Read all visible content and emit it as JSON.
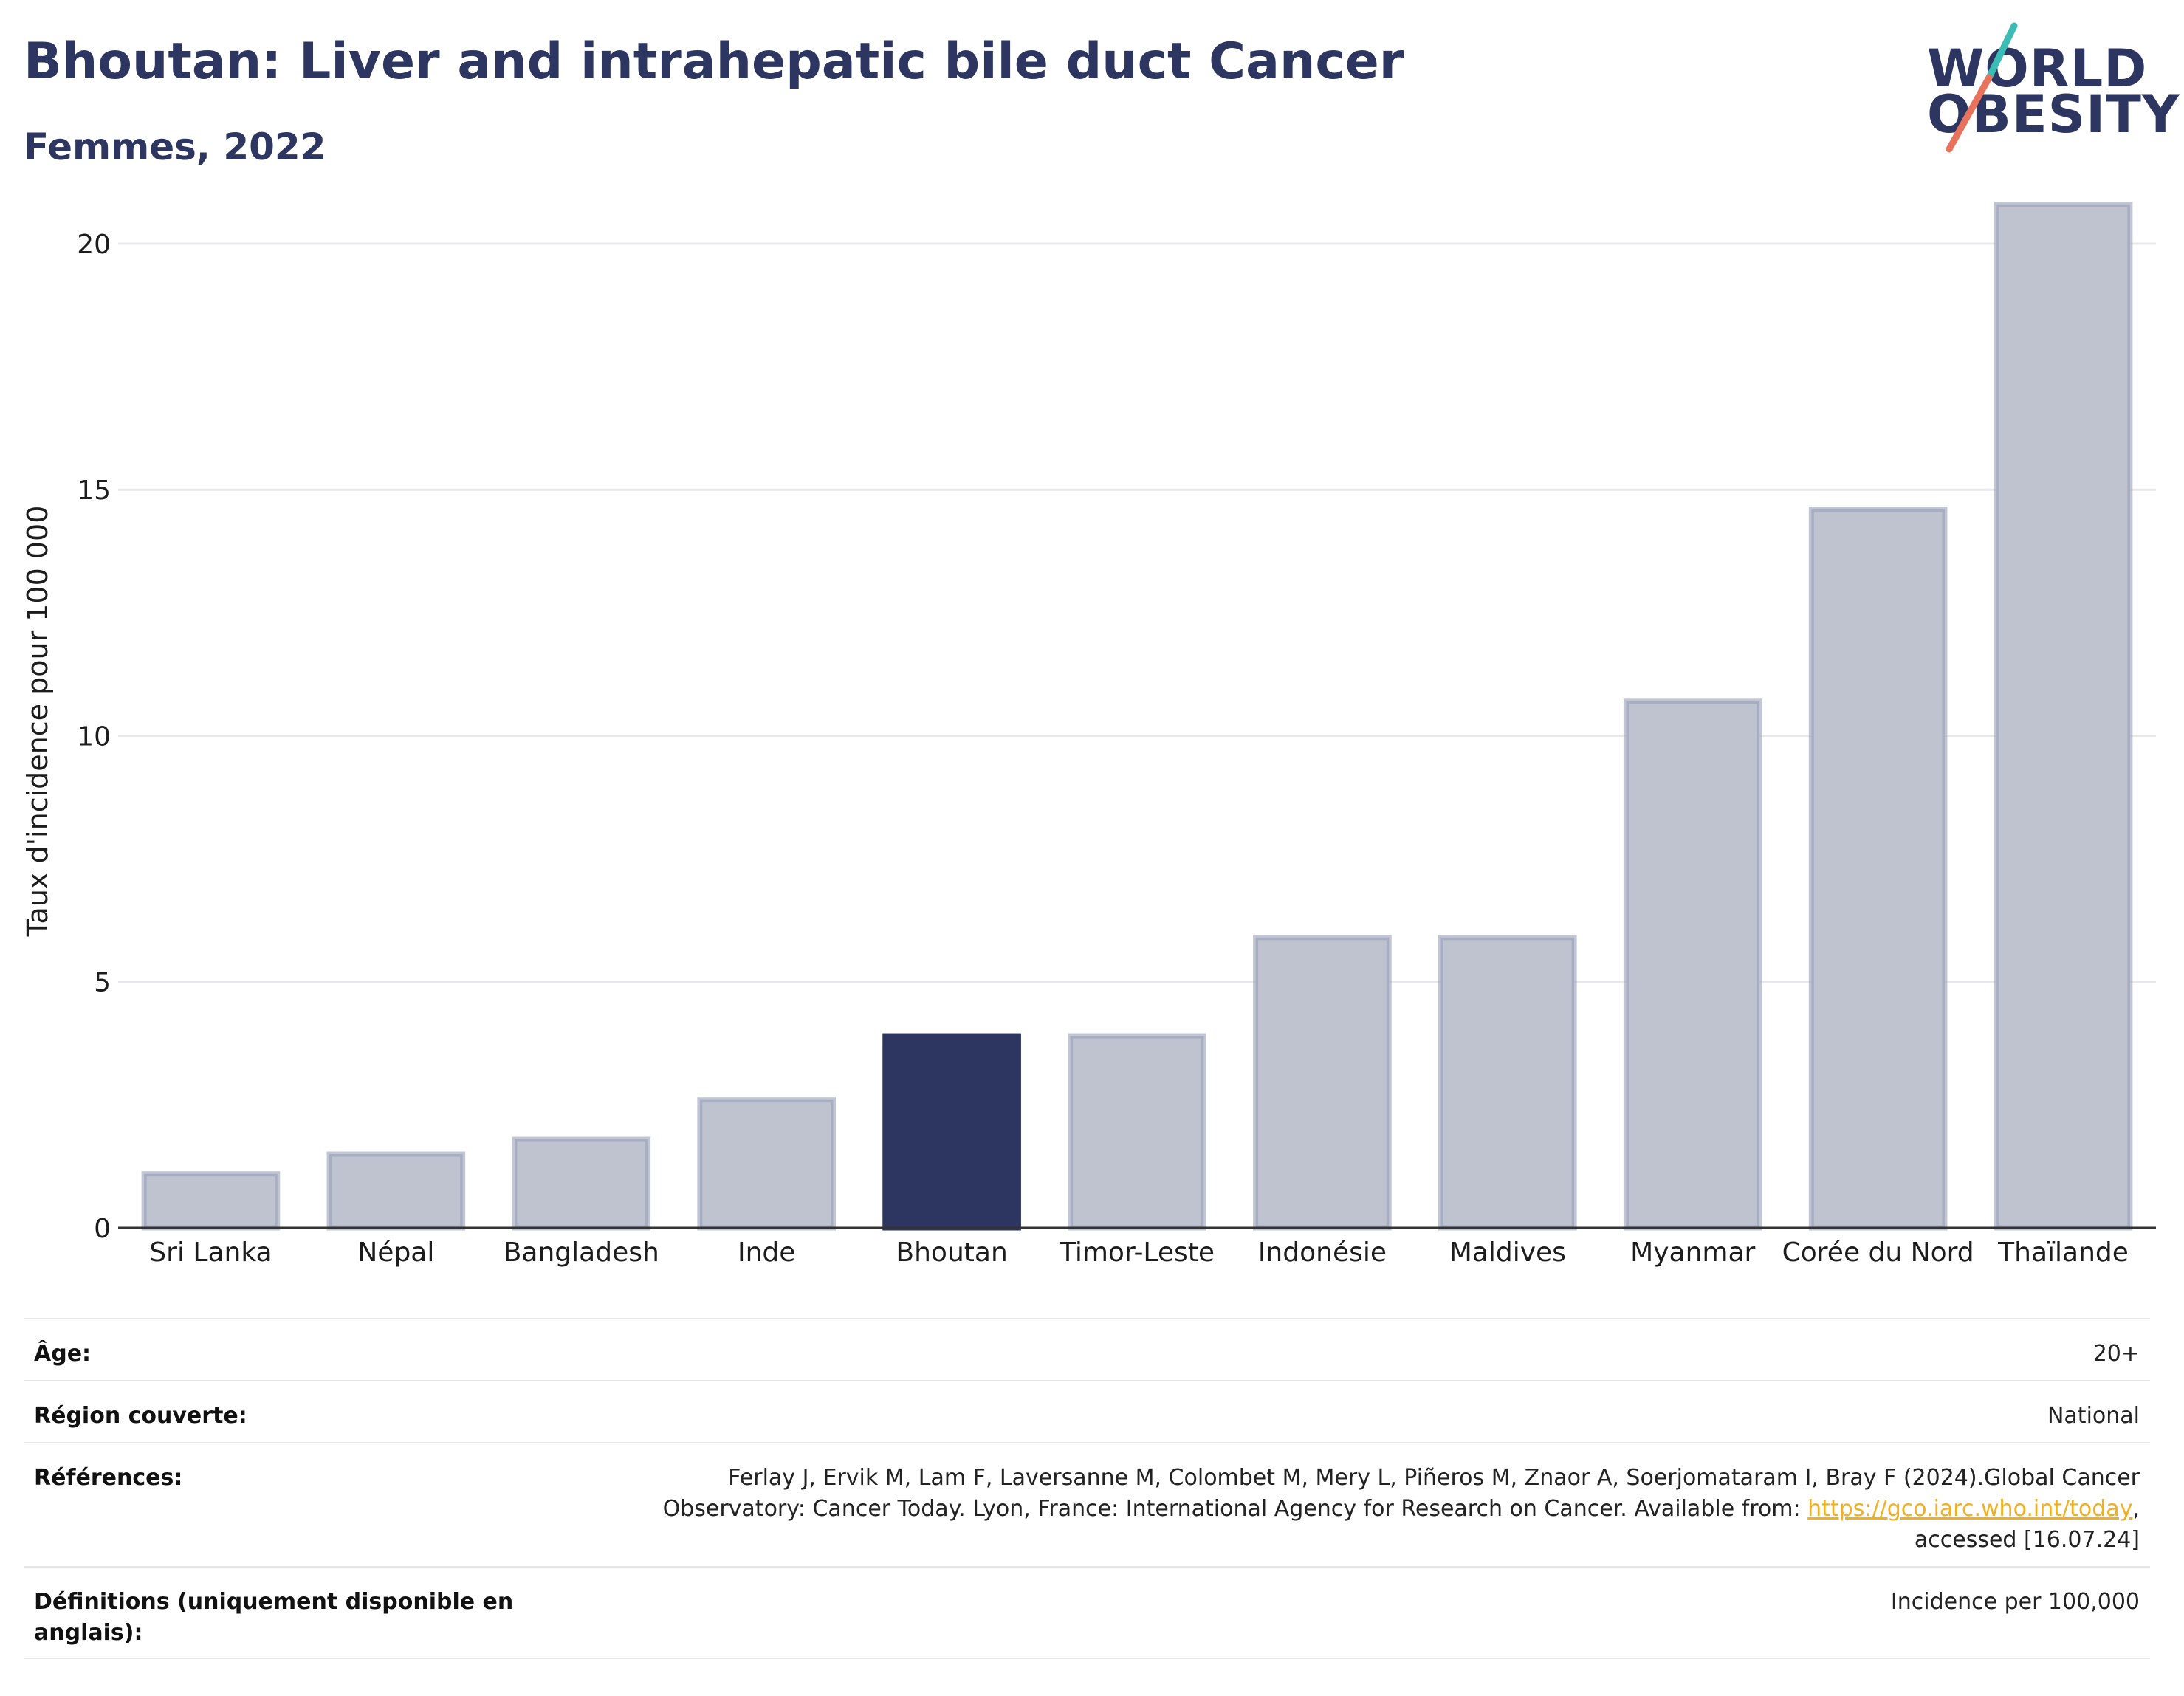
{
  "header": {
    "title": "Bhoutan: Liver and intrahepatic bile duct Cancer",
    "subtitle": "Femmes, 2022"
  },
  "logo": {
    "line1": "WORLD",
    "line2": "OBESITY",
    "colors": {
      "text": "#2c3660",
      "slash_teal": "#3bbcb4",
      "slash_coral": "#e8735c"
    }
  },
  "chart_data": {
    "type": "bar",
    "categories": [
      "Sri Lanka",
      "Népal",
      "Bangladesh",
      "Inde",
      "Bhoutan",
      "Timor-Leste",
      "Indonésie",
      "Maldives",
      "Myanmar",
      "Corée du Nord",
      "Thaïlande"
    ],
    "values": [
      1.1,
      1.5,
      1.8,
      2.6,
      3.9,
      3.9,
      5.9,
      5.9,
      10.7,
      14.6,
      20.8
    ],
    "highlight": "Bhoutan",
    "ylabel": "Taux d'incidence pour 100 000",
    "xlabel": "",
    "ylim": [
      0,
      21.5
    ],
    "yticks": [
      0,
      5,
      10,
      15,
      20
    ],
    "grid": true,
    "colors": {
      "bar": "#bfc2cf",
      "bar_edge": "#9aa0b8",
      "highlight": "#2c3660",
      "grid": "#e8e8ec",
      "axis": "#333333"
    }
  },
  "info": {
    "age_label": "Âge:",
    "age_value": "20+",
    "region_label": "Région couverte:",
    "region_value": "National",
    "references_label": "Références:",
    "references_line1": "Ferlay J, Ervik M, Lam F, Laversanne M, Colombet M, Mery L, Piñeros M, Znaor A, Soerjomataram I, Bray F (2024).Global Cancer",
    "references_line2_pre": "Observatory: Cancer Today. Lyon, France: International Agency for Research on Cancer. Available from: ",
    "references_link": "https://gco.iarc.who.int/today",
    "references_line2_post": ",",
    "references_line3": "accessed [16.07.24]",
    "definitions_label": "Définitions (uniquement disponible en anglais):",
    "definitions_value": "Incidence per 100,000"
  }
}
